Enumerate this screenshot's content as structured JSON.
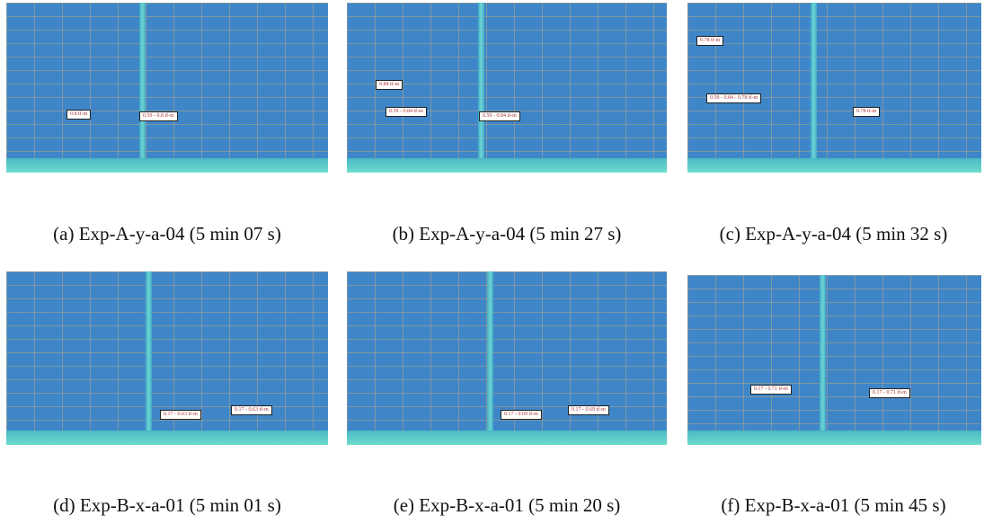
{
  "panels": [
    {
      "caption": "(a) Exp-A-y-a-04 (5 min 07 s)",
      "labels": [
        "0.8 tf-m",
        "0.59 - 0.8 tf-m"
      ]
    },
    {
      "caption": "(b) Exp-A-y-a-04 (5 min 27 s)",
      "labels": [
        "0.84 tf-m",
        "0.59 - 0.84 tf-m",
        "0.59 - 0.84 tf-m"
      ]
    },
    {
      "caption": "(c) Exp-A-y-a-04 (5 min 32 s)",
      "labels": [
        "0.78 tf-m",
        "0.59 - 0.84 - 0.78 tf-m",
        "0.78 tf-m"
      ]
    },
    {
      "caption": "(d) Exp-B-x-a-01 (5 min 01 s)",
      "labels": [
        "0.17 - 0.63 tf-m",
        "0.17 - 0.63 tf-m"
      ]
    },
    {
      "caption": "(e) Exp-B-x-a-01 (5 min 20 s)",
      "labels": [
        "0.17 - 0.69 tf-m",
        "0.17 - 0.69 tf-m"
      ]
    },
    {
      "caption": "(f) Exp-B-x-a-01 (5 min 45 s)",
      "labels": [
        "0.17 - 0.71 tf-m",
        "0.17 - 0.71 tf-m"
      ]
    }
  ]
}
